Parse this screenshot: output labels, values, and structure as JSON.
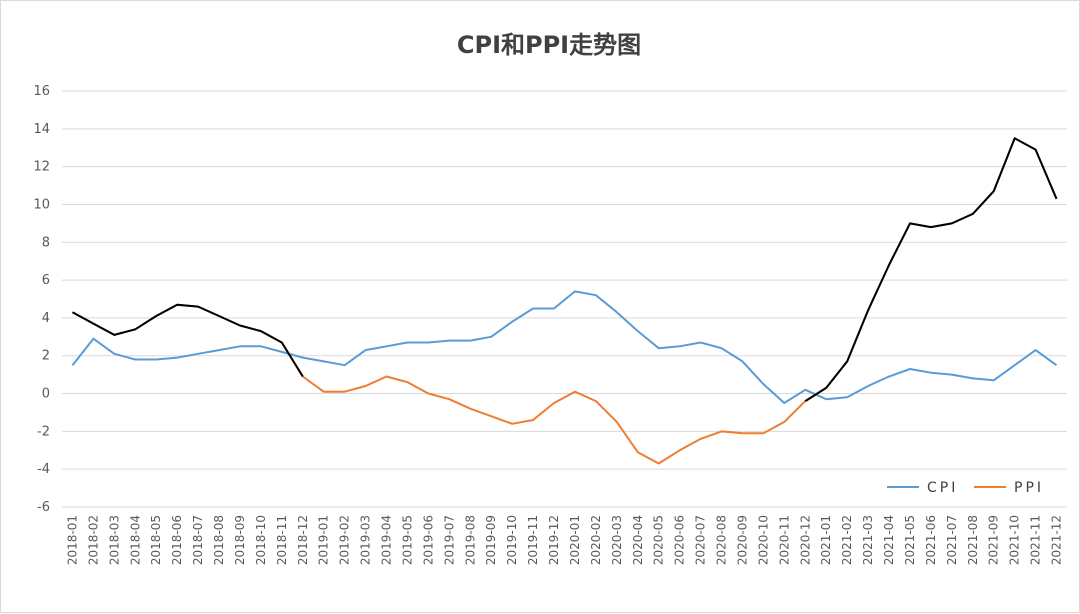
{
  "chart_data": {
    "type": "line",
    "title": "CPI和PPI走势图",
    "ylim": [
      -6,
      16
    ],
    "yticks": [
      -6,
      -4,
      -2,
      0,
      2,
      4,
      6,
      8,
      10,
      12,
      14,
      16
    ],
    "grid": true,
    "legend_position": "bottom-right",
    "categories": [
      "2018-01",
      "2018-02",
      "2018-03",
      "2018-04",
      "2018-05",
      "2018-06",
      "2018-07",
      "2018-08",
      "2018-09",
      "2018-10",
      "2018-11",
      "2018-12",
      "2019-01",
      "2019-02",
      "2019-03",
      "2019-04",
      "2019-05",
      "2019-06",
      "2019-07",
      "2019-08",
      "2019-09",
      "2019-10",
      "2019-11",
      "2019-12",
      "2020-01",
      "2020-02",
      "2020-03",
      "2020-04",
      "2020-05",
      "2020-06",
      "2020-07",
      "2020-08",
      "2020-09",
      "2020-10",
      "2020-11",
      "2020-12",
      "2021-01",
      "2021-02",
      "2021-03",
      "2021-04",
      "2021-05",
      "2021-06",
      "2021-07",
      "2021-08",
      "2021-09",
      "2021-10",
      "2021-11",
      "2021-12"
    ],
    "series": [
      {
        "name": "CPI",
        "color": "#5b9bd5",
        "values": [
          1.5,
          2.9,
          2.1,
          1.8,
          1.8,
          1.9,
          2.1,
          2.3,
          2.5,
          2.5,
          2.2,
          1.9,
          1.7,
          1.5,
          2.3,
          2.5,
          2.7,
          2.7,
          2.8,
          2.8,
          3.0,
          3.8,
          4.5,
          4.5,
          5.4,
          5.2,
          4.3,
          3.3,
          2.4,
          2.5,
          2.7,
          2.4,
          1.7,
          0.5,
          -0.5,
          0.2,
          -0.3,
          -0.2,
          0.4,
          0.9,
          1.3,
          1.1,
          1.0,
          0.8,
          0.7,
          1.5,
          2.3,
          1.5
        ]
      },
      {
        "name": "PPI",
        "color": "#ed7d31",
        "values": [
          4.3,
          3.7,
          3.1,
          3.4,
          4.1,
          4.7,
          4.6,
          4.1,
          3.6,
          3.3,
          2.7,
          0.9,
          0.1,
          0.1,
          0.4,
          0.9,
          0.6,
          0.0,
          -0.3,
          -0.8,
          -1.2,
          -1.6,
          -1.4,
          -0.5,
          0.1,
          -0.4,
          -1.5,
          -3.1,
          -3.7,
          -3.0,
          -2.4,
          -2.0,
          -2.1,
          -2.1,
          -1.5,
          -0.4,
          0.3,
          1.7,
          4.4,
          6.8,
          9.0,
          8.8,
          9.0,
          9.5,
          10.7,
          13.5,
          12.9,
          10.3
        ],
        "black_segments": [
          [
            0,
            11
          ],
          [
            35,
            47
          ]
        ],
        "black_color": "#000000"
      }
    ]
  }
}
